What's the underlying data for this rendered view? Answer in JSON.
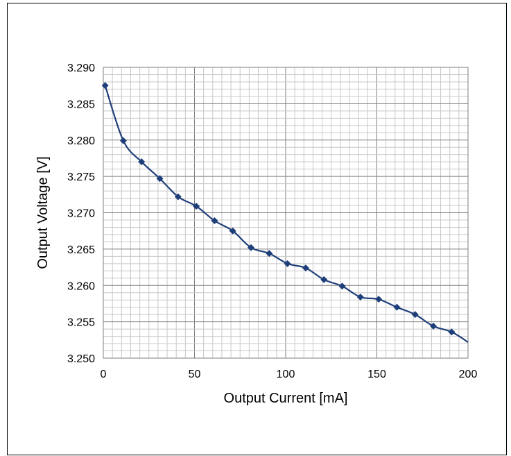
{
  "chart_data": {
    "type": "line",
    "title": "",
    "xlabel": "Output Current [mA]",
    "ylabel": "Output Voltage [V]",
    "xlim": [
      0,
      200
    ],
    "ylim": [
      3.25,
      3.29
    ],
    "x_ticks": [
      "0",
      "50",
      "100",
      "150",
      "200"
    ],
    "y_ticks": [
      "3.250",
      "3.255",
      "3.260",
      "3.265",
      "3.270",
      "3.275",
      "3.280",
      "3.285",
      "3.290"
    ],
    "grid": true,
    "legend": "none",
    "line_color": "#1f3f7a",
    "grid_major_color": "#7f7f7f",
    "grid_minor_color": "#c8c8c8",
    "series": [
      {
        "x": [
          1,
          11,
          21,
          31,
          41,
          51,
          61,
          71,
          81,
          91,
          101,
          111,
          121,
          131,
          141,
          151,
          161,
          171,
          181,
          191,
          200
        ],
        "y": [
          3.2875,
          3.2799,
          3.277,
          3.2747,
          3.2722,
          3.2709,
          3.2689,
          3.2675,
          3.2652,
          3.2644,
          3.263,
          3.2624,
          3.2608,
          3.2599,
          3.2584,
          3.2581,
          3.257,
          3.256,
          3.2544,
          3.2536,
          3.2522
        ],
        "markers": [
          true,
          true,
          true,
          true,
          true,
          true,
          true,
          true,
          true,
          true,
          true,
          true,
          true,
          true,
          true,
          true,
          true,
          true,
          true,
          true,
          false
        ]
      }
    ]
  }
}
